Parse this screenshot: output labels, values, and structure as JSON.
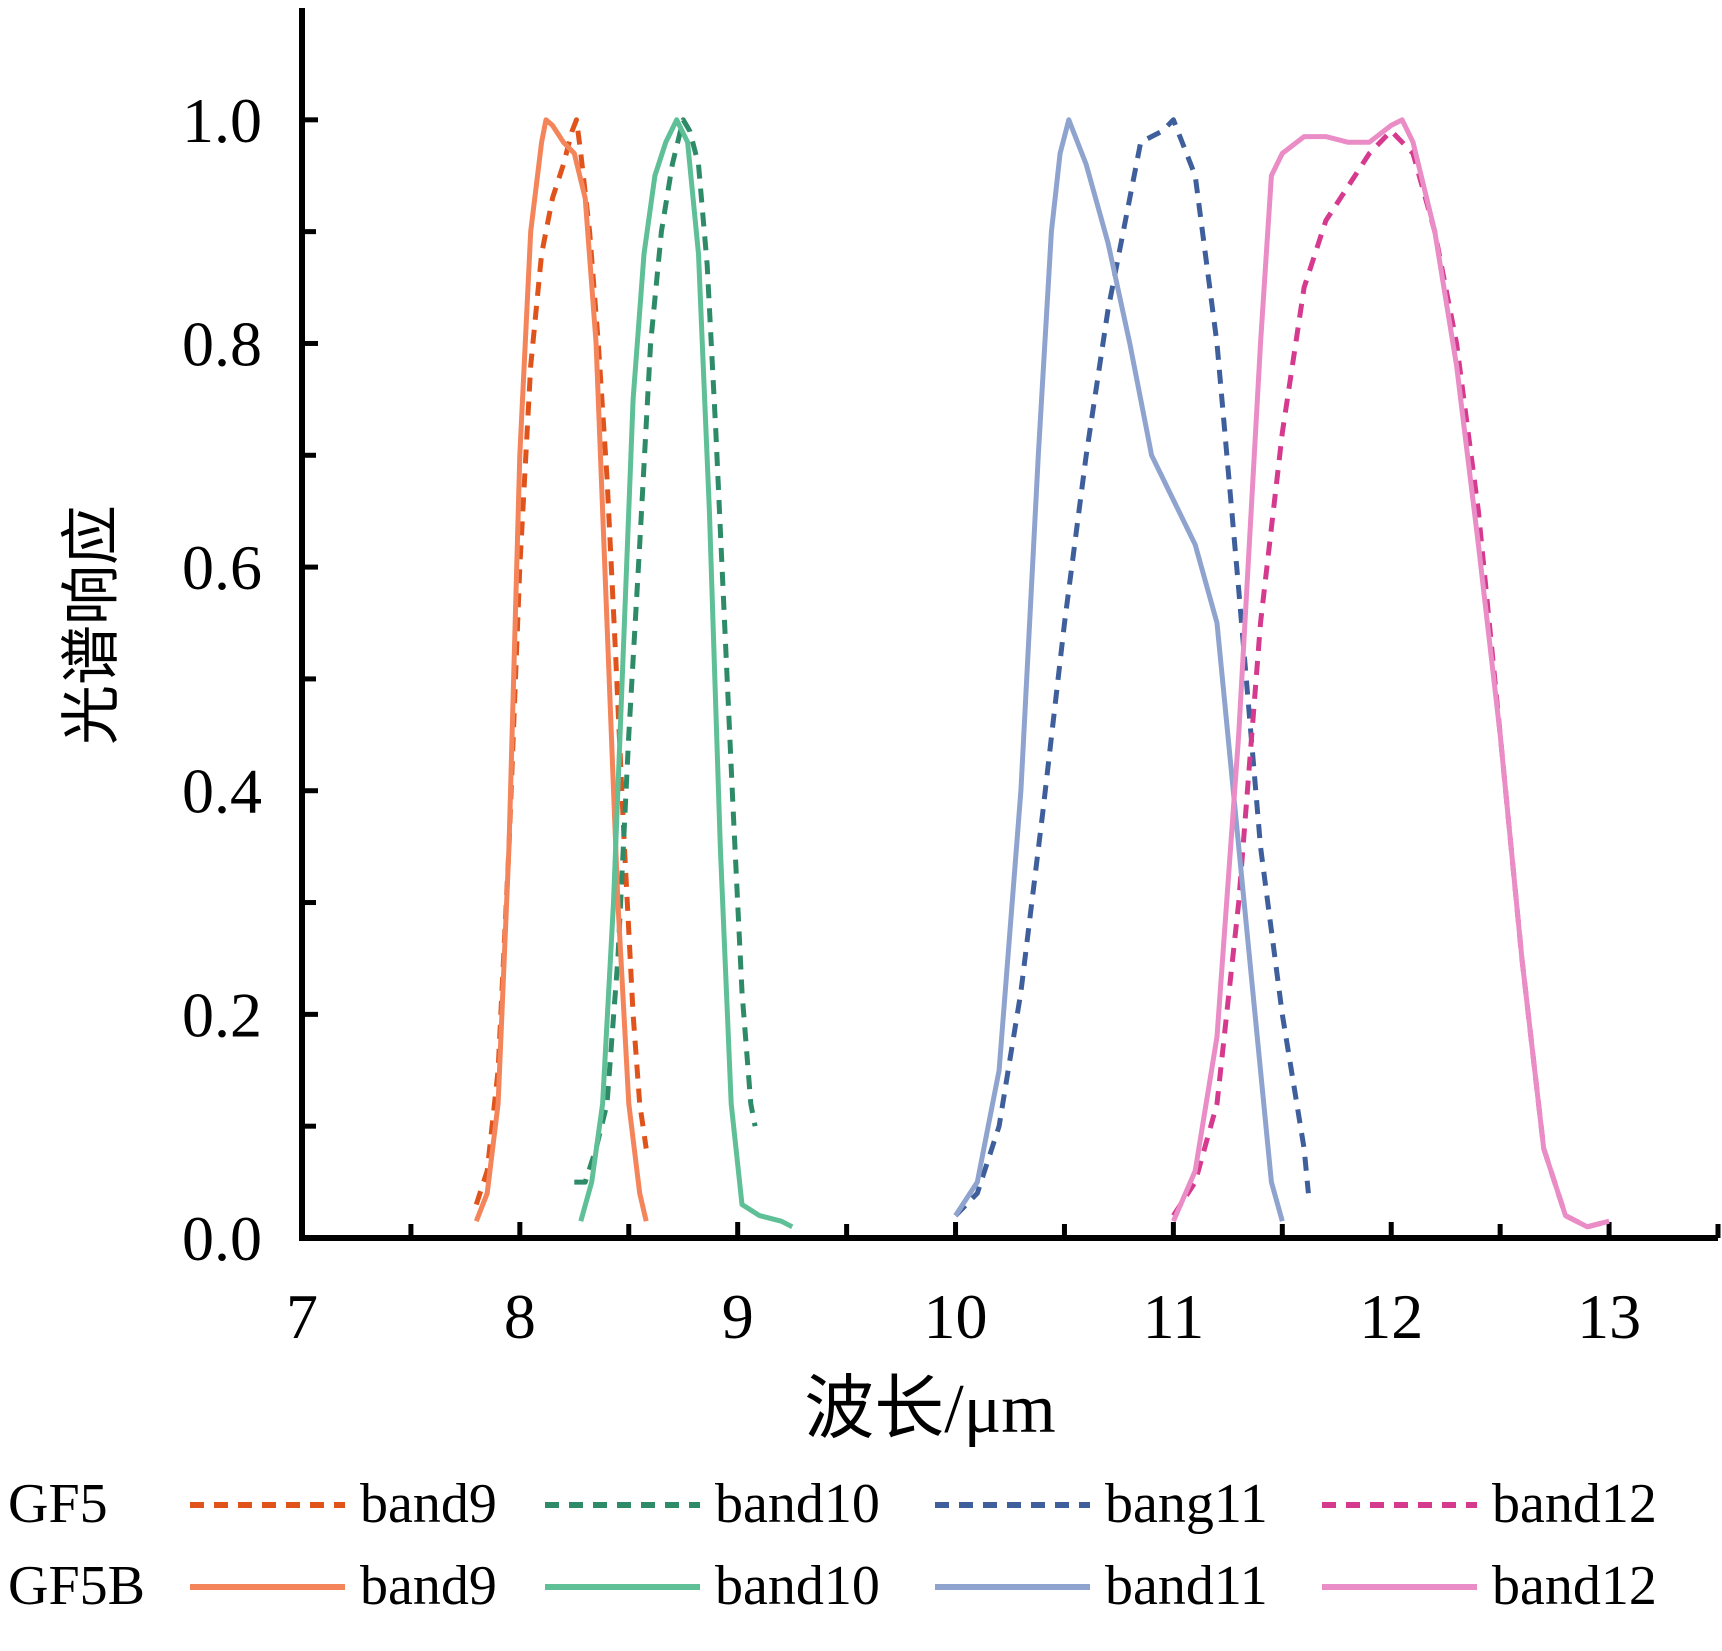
{
  "chart_data": {
    "type": "line",
    "title": "",
    "xlabel": "波长/μm",
    "ylabel": "光谱响应",
    "xlim": [
      7,
      13.5
    ],
    "ylim": [
      0,
      1.1
    ],
    "x_ticks": [
      "7",
      "8",
      "9",
      "10",
      "11",
      "12",
      "13"
    ],
    "y_ticks": [
      "0.0",
      "0.2",
      "0.4",
      "0.6",
      "0.8",
      "1.0"
    ],
    "grid": false,
    "legend": {
      "placement": "bottom",
      "groups": [
        {
          "label": "GF5",
          "style": "dashed",
          "entries": [
            "band9",
            "band10",
            "bang11",
            "band12"
          ]
        },
        {
          "label": "GF5B",
          "style": "solid",
          "entries": [
            "band9",
            "band10",
            "band11",
            "band12"
          ]
        }
      ]
    },
    "series": [
      {
        "name": "band9",
        "group": "GF5",
        "style": "dashed",
        "color": "#e0541c",
        "points": [
          [
            7.8,
            0.03
          ],
          [
            7.85,
            0.06
          ],
          [
            7.9,
            0.15
          ],
          [
            7.95,
            0.35
          ],
          [
            8.0,
            0.6
          ],
          [
            8.05,
            0.78
          ],
          [
            8.1,
            0.88
          ],
          [
            8.15,
            0.93
          ],
          [
            8.2,
            0.96
          ],
          [
            8.24,
            0.99
          ],
          [
            8.26,
            1.0
          ],
          [
            8.28,
            0.97
          ],
          [
            8.32,
            0.9
          ],
          [
            8.36,
            0.8
          ],
          [
            8.4,
            0.68
          ],
          [
            8.44,
            0.52
          ],
          [
            8.48,
            0.35
          ],
          [
            8.52,
            0.2
          ],
          [
            8.55,
            0.12
          ],
          [
            8.58,
            0.08
          ]
        ]
      },
      {
        "name": "band10",
        "group": "GF5",
        "style": "dashed",
        "color": "#2e8b68",
        "points": [
          [
            8.25,
            0.05
          ],
          [
            8.3,
            0.05
          ],
          [
            8.35,
            0.08
          ],
          [
            8.4,
            0.12
          ],
          [
            8.45,
            0.25
          ],
          [
            8.5,
            0.45
          ],
          [
            8.55,
            0.62
          ],
          [
            8.6,
            0.8
          ],
          [
            8.65,
            0.9
          ],
          [
            8.7,
            0.96
          ],
          [
            8.75,
            1.0
          ],
          [
            8.78,
            0.99
          ],
          [
            8.82,
            0.96
          ],
          [
            8.86,
            0.87
          ],
          [
            8.9,
            0.72
          ],
          [
            8.94,
            0.55
          ],
          [
            8.98,
            0.38
          ],
          [
            9.02,
            0.22
          ],
          [
            9.06,
            0.12
          ],
          [
            9.08,
            0.1
          ]
        ]
      },
      {
        "name": "bang11",
        "group": "GF5",
        "style": "dashed",
        "color": "#3e5f9b",
        "points": [
          [
            10.0,
            0.02
          ],
          [
            10.1,
            0.04
          ],
          [
            10.2,
            0.1
          ],
          [
            10.3,
            0.22
          ],
          [
            10.4,
            0.38
          ],
          [
            10.5,
            0.55
          ],
          [
            10.6,
            0.7
          ],
          [
            10.7,
            0.83
          ],
          [
            10.8,
            0.93
          ],
          [
            10.85,
            0.98
          ],
          [
            10.95,
            0.99
          ],
          [
            11.0,
            1.0
          ],
          [
            11.1,
            0.95
          ],
          [
            11.2,
            0.8
          ],
          [
            11.3,
            0.58
          ],
          [
            11.4,
            0.35
          ],
          [
            11.5,
            0.2
          ],
          [
            11.6,
            0.08
          ],
          [
            11.62,
            0.04
          ]
        ]
      },
      {
        "name": "band12",
        "group": "GF5",
        "style": "dashed",
        "color": "#d63a8f",
        "points": [
          [
            11.0,
            0.02
          ],
          [
            11.1,
            0.05
          ],
          [
            11.2,
            0.12
          ],
          [
            11.3,
            0.3
          ],
          [
            11.4,
            0.55
          ],
          [
            11.5,
            0.72
          ],
          [
            11.6,
            0.85
          ],
          [
            11.7,
            0.91
          ],
          [
            11.8,
            0.94
          ],
          [
            11.9,
            0.97
          ],
          [
            12.0,
            0.99
          ],
          [
            12.1,
            0.97
          ],
          [
            12.2,
            0.9
          ],
          [
            12.3,
            0.8
          ],
          [
            12.4,
            0.65
          ],
          [
            12.5,
            0.45
          ],
          [
            12.6,
            0.25
          ],
          [
            12.7,
            0.08
          ],
          [
            12.8,
            0.02
          ],
          [
            12.9,
            0.01
          ],
          [
            13.0,
            0.015
          ]
        ]
      },
      {
        "name": "band9",
        "group": "GF5B",
        "style": "solid",
        "color": "#f4845a",
        "points": [
          [
            7.8,
            0.015
          ],
          [
            7.85,
            0.04
          ],
          [
            7.9,
            0.12
          ],
          [
            7.95,
            0.35
          ],
          [
            8.0,
            0.7
          ],
          [
            8.05,
            0.9
          ],
          [
            8.1,
            0.98
          ],
          [
            8.12,
            1.0
          ],
          [
            8.15,
            0.995
          ],
          [
            8.2,
            0.98
          ],
          [
            8.25,
            0.97
          ],
          [
            8.3,
            0.93
          ],
          [
            8.35,
            0.8
          ],
          [
            8.4,
            0.55
          ],
          [
            8.45,
            0.3
          ],
          [
            8.5,
            0.12
          ],
          [
            8.55,
            0.04
          ],
          [
            8.58,
            0.015
          ]
        ]
      },
      {
        "name": "band10",
        "group": "GF5B",
        "style": "solid",
        "color": "#5fbf97",
        "points": [
          [
            8.28,
            0.015
          ],
          [
            8.33,
            0.05
          ],
          [
            8.38,
            0.12
          ],
          [
            8.43,
            0.3
          ],
          [
            8.48,
            0.55
          ],
          [
            8.52,
            0.75
          ],
          [
            8.57,
            0.88
          ],
          [
            8.62,
            0.95
          ],
          [
            8.67,
            0.98
          ],
          [
            8.72,
            1.0
          ],
          [
            8.77,
            0.98
          ],
          [
            8.82,
            0.88
          ],
          [
            8.87,
            0.65
          ],
          [
            8.92,
            0.35
          ],
          [
            8.97,
            0.12
          ],
          [
            9.02,
            0.03
          ],
          [
            9.1,
            0.02
          ],
          [
            9.2,
            0.015
          ],
          [
            9.25,
            0.01
          ]
        ]
      },
      {
        "name": "band11",
        "group": "GF5B",
        "style": "solid",
        "color": "#8fa3cf",
        "points": [
          [
            10.0,
            0.02
          ],
          [
            10.1,
            0.05
          ],
          [
            10.2,
            0.15
          ],
          [
            10.3,
            0.4
          ],
          [
            10.38,
            0.7
          ],
          [
            10.44,
            0.9
          ],
          [
            10.48,
            0.97
          ],
          [
            10.52,
            1.0
          ],
          [
            10.6,
            0.96
          ],
          [
            10.7,
            0.89
          ],
          [
            10.8,
            0.8
          ],
          [
            10.9,
            0.7
          ],
          [
            10.95,
            0.68
          ],
          [
            11.0,
            0.66
          ],
          [
            11.1,
            0.62
          ],
          [
            11.2,
            0.55
          ],
          [
            11.3,
            0.35
          ],
          [
            11.4,
            0.15
          ],
          [
            11.45,
            0.05
          ],
          [
            11.5,
            0.015
          ]
        ]
      },
      {
        "name": "band12",
        "group": "GF5B",
        "style": "solid",
        "color": "#ea8cc5",
        "points": [
          [
            11.0,
            0.015
          ],
          [
            11.1,
            0.06
          ],
          [
            11.2,
            0.18
          ],
          [
            11.3,
            0.45
          ],
          [
            11.4,
            0.8
          ],
          [
            11.45,
            0.95
          ],
          [
            11.5,
            0.97
          ],
          [
            11.6,
            0.985
          ],
          [
            11.7,
            0.985
          ],
          [
            11.8,
            0.98
          ],
          [
            11.9,
            0.98
          ],
          [
            12.0,
            0.995
          ],
          [
            12.05,
            1.0
          ],
          [
            12.1,
            0.98
          ],
          [
            12.2,
            0.9
          ],
          [
            12.3,
            0.78
          ],
          [
            12.4,
            0.62
          ],
          [
            12.5,
            0.45
          ],
          [
            12.6,
            0.25
          ],
          [
            12.7,
            0.08
          ],
          [
            12.8,
            0.02
          ],
          [
            12.9,
            0.01
          ],
          [
            13.0,
            0.015
          ]
        ]
      }
    ]
  }
}
